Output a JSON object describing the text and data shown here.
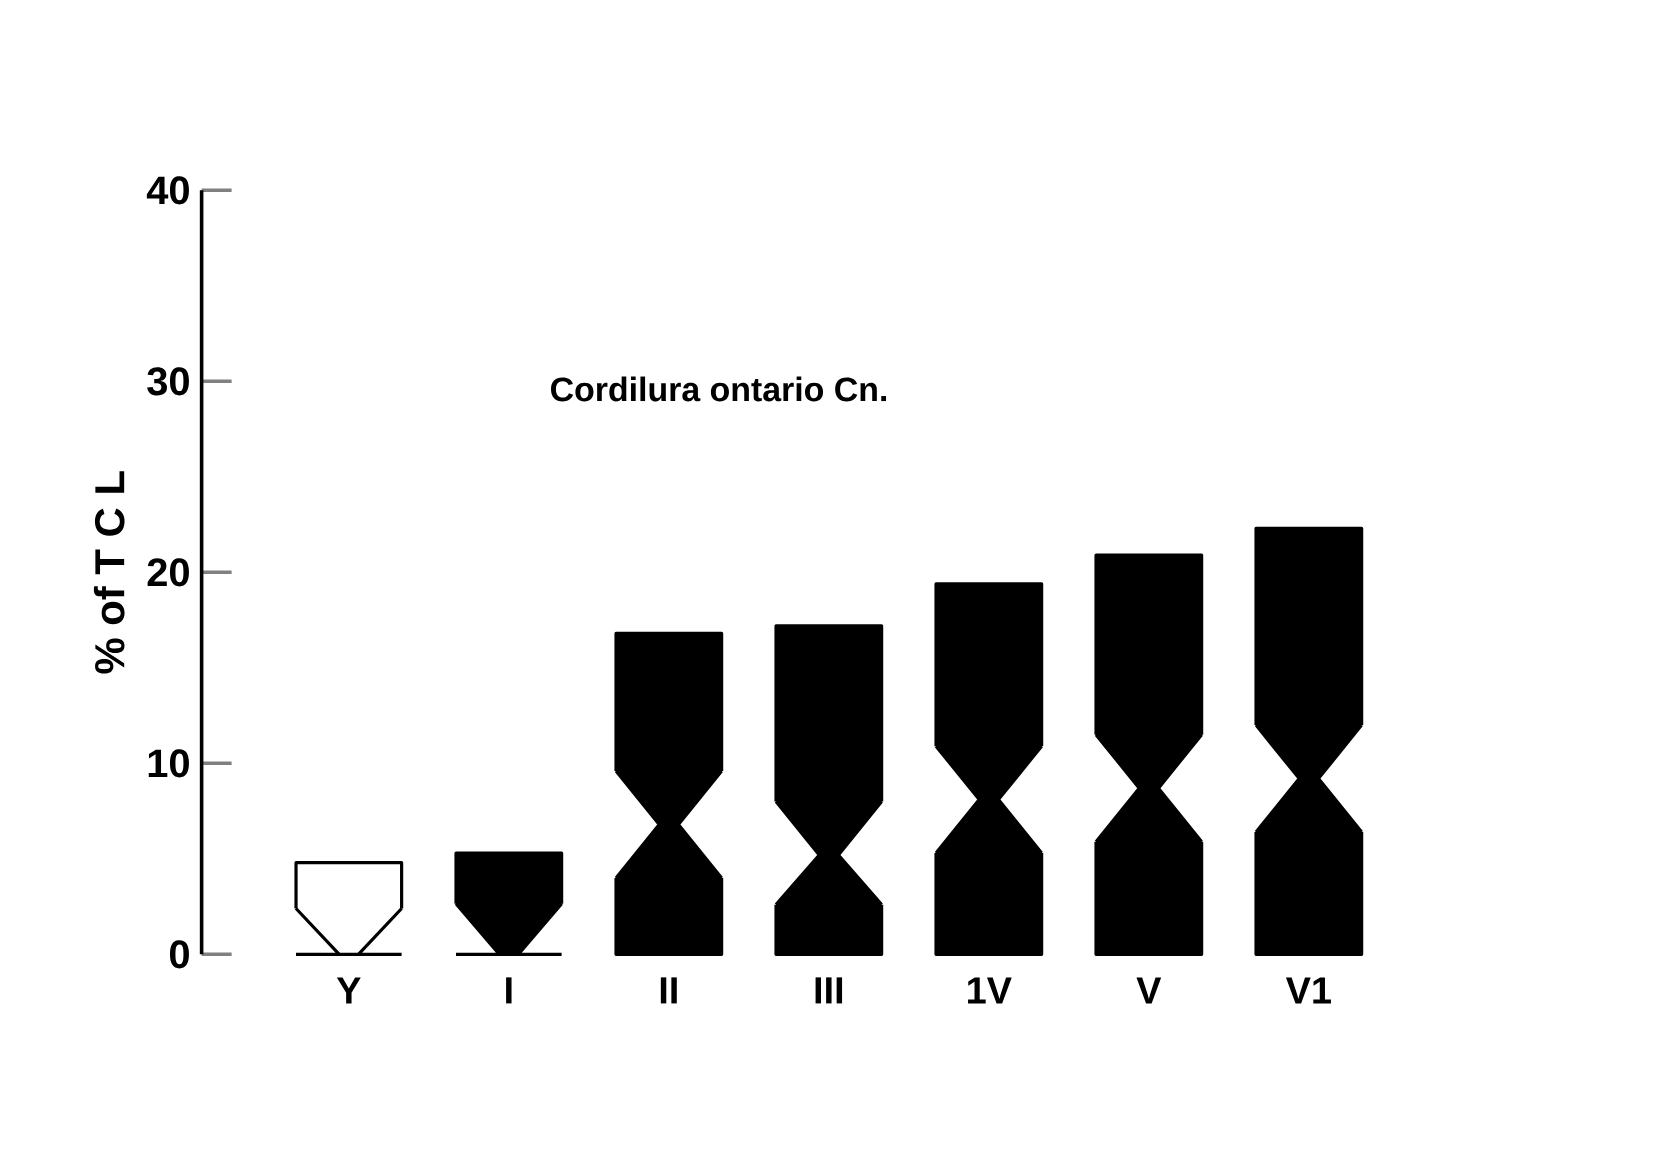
{
  "chart_data": {
    "type": "bar",
    "stacked": true,
    "title": "Cordilura ontario Cn.",
    "ylabel": "% of T C L",
    "categories": [
      "Y",
      "I",
      "II",
      "III",
      "1V",
      "V",
      "V1"
    ],
    "series": [
      {
        "colors": [
          "#ffffff",
          "#000000",
          "#000000",
          "#000000",
          "#000000",
          "#000000",
          "#000000"
        ],
        "values": [
          0,
          0,
          6.8,
          5.2,
          8.1,
          8.7,
          9.2
        ]
      },
      {
        "colors": [
          "#ffffff",
          "#000000",
          "#000000",
          "#000000",
          "#000000",
          "#000000",
          "#000000"
        ],
        "values": [
          4.8,
          5.3,
          10.0,
          12.0,
          11.3,
          12.2,
          13.1
        ]
      }
    ],
    "ylim": [
      0,
      40
    ],
    "yticks": [
      0,
      10,
      20,
      30,
      40
    ]
  }
}
